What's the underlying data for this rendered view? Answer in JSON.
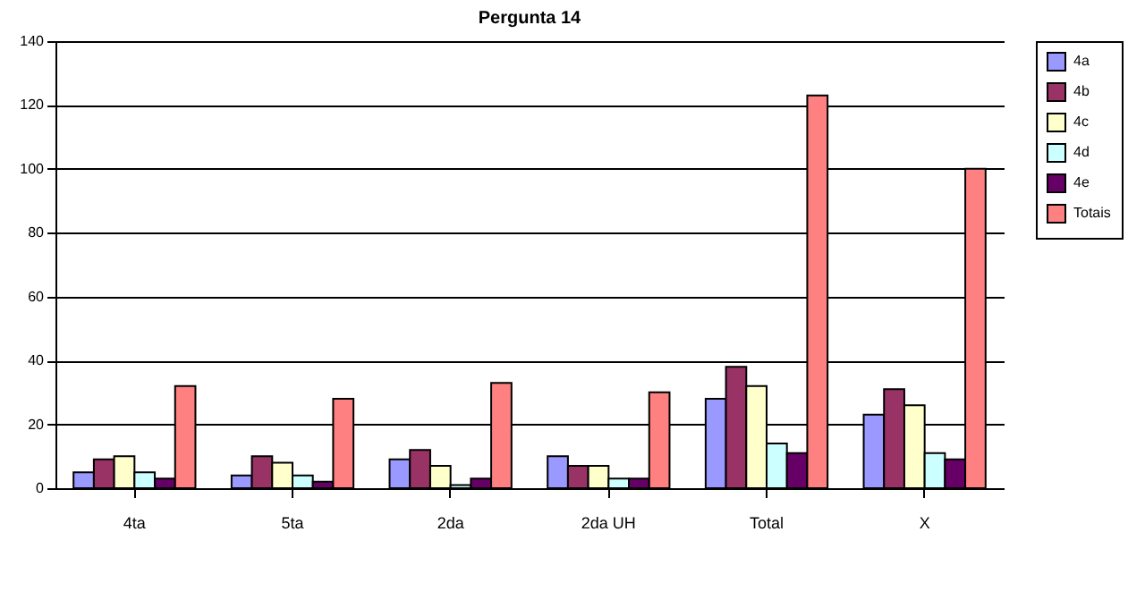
{
  "chart_data": {
    "type": "bar",
    "title": "Pergunta 14",
    "categories": [
      "4ta",
      "5ta",
      "2da",
      "2da UH",
      "Total",
      "X"
    ],
    "series": [
      {
        "name": "4a",
        "color": "#9999ff",
        "values": [
          5,
          4,
          9,
          10,
          28,
          23
        ]
      },
      {
        "name": "4b",
        "color": "#993366",
        "values": [
          9,
          10,
          12,
          7,
          38,
          31
        ]
      },
      {
        "name": "4c",
        "color": "#ffffcc",
        "values": [
          10,
          8,
          7,
          7,
          32,
          26
        ]
      },
      {
        "name": "4d",
        "color": "#ccffff",
        "values": [
          5,
          4,
          1,
          3,
          14,
          11
        ]
      },
      {
        "name": "4e",
        "color": "#660066",
        "values": [
          3,
          2,
          3,
          3,
          11,
          9
        ]
      },
      {
        "name": "Totais",
        "color": "#ff8080",
        "values": [
          32,
          28,
          33,
          30,
          123,
          100
        ]
      }
    ],
    "ylim": [
      0,
      140
    ],
    "yticks": [
      0,
      20,
      40,
      60,
      80,
      100,
      120,
      140
    ],
    "grid": "y",
    "legend": "right"
  }
}
